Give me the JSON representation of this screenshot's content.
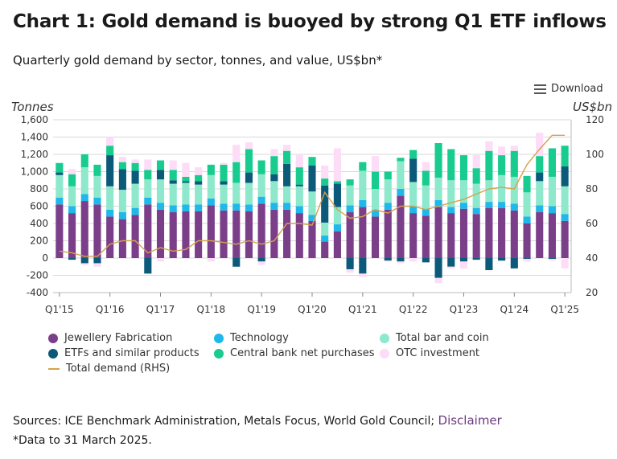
{
  "header": {
    "title": "Chart 1: Gold demand is buoyed by strong Q1 ETF inflows",
    "subtitle": "Quarterly gold demand by sector, tonnes, and value, US$bn*",
    "download_label": "Download"
  },
  "footer": {
    "sources_text": "Sources: ICE Benchmark Administration, Metals Focus, World Gold Council;",
    "disclaimer_label": "Disclaimer",
    "note": "*Data to 31 March 2025."
  },
  "chart_data": {
    "type": "bar",
    "stacked": true,
    "ylabel": "Tonnes",
    "y2label": "US$bn",
    "ylim": [
      -400,
      1600
    ],
    "y2lim": [
      20,
      120
    ],
    "yticks": [
      "1,600",
      "1,400",
      "1,200",
      "1,000",
      "800",
      "600",
      "400",
      "200",
      "0",
      "-200",
      "-400"
    ],
    "y2ticks": [
      "120",
      "100",
      "80",
      "60",
      "40",
      "20"
    ],
    "xtick_labels": [
      "Q1'15",
      "Q1'16",
      "Q1'17",
      "Q1'18",
      "Q1'19",
      "Q1'20",
      "Q1'21",
      "Q1'22",
      "Q1'23",
      "Q1'24",
      "Q1'25"
    ],
    "grid": true,
    "legend_position": "bottom",
    "categories": [
      "Q1'15",
      "Q2'15",
      "Q3'15",
      "Q4'15",
      "Q1'16",
      "Q2'16",
      "Q3'16",
      "Q4'16",
      "Q1'17",
      "Q2'17",
      "Q3'17",
      "Q4'17",
      "Q1'18",
      "Q2'18",
      "Q3'18",
      "Q4'18",
      "Q1'19",
      "Q2'19",
      "Q3'19",
      "Q4'19",
      "Q1'20",
      "Q2'20",
      "Q3'20",
      "Q4'20",
      "Q1'21",
      "Q2'21",
      "Q3'21",
      "Q4'21",
      "Q1'22",
      "Q2'22",
      "Q3'22",
      "Q4'22",
      "Q1'23",
      "Q2'23",
      "Q3'23",
      "Q4'23",
      "Q1'24",
      "Q2'24",
      "Q3'24",
      "Q4'24",
      "Q1'25"
    ],
    "series": [
      {
        "name": "Jewellery Fabrication",
        "color": "#7b3f8a",
        "kind": "bar",
        "values": [
          620,
          520,
          660,
          620,
          480,
          450,
          500,
          620,
          560,
          530,
          540,
          540,
          610,
          550,
          550,
          540,
          630,
          560,
          560,
          520,
          430,
          190,
          310,
          530,
          590,
          480,
          560,
          720,
          520,
          490,
          590,
          520,
          570,
          510,
          580,
          580,
          550,
          400,
          530,
          520,
          430
        ]
      },
      {
        "name": "Technology",
        "color": "#1fb8ea",
        "kind": "bar",
        "values": [
          80,
          80,
          80,
          80,
          80,
          80,
          80,
          80,
          80,
          80,
          80,
          80,
          80,
          80,
          80,
          80,
          80,
          80,
          80,
          80,
          70,
          70,
          80,
          80,
          80,
          80,
          80,
          80,
          80,
          80,
          80,
          70,
          70,
          70,
          70,
          70,
          80,
          80,
          80,
          80,
          80
        ]
      },
      {
        "name": "Total bar and coin",
        "color": "#8ee8cc",
        "kind": "bar",
        "values": [
          260,
          230,
          310,
          250,
          270,
          260,
          280,
          210,
          270,
          250,
          250,
          230,
          270,
          220,
          240,
          250,
          260,
          250,
          190,
          230,
          270,
          150,
          200,
          230,
          340,
          240,
          270,
          320,
          280,
          270,
          260,
          310,
          260,
          280,
          250,
          310,
          310,
          280,
          280,
          340,
          320
        ]
      },
      {
        "name": "ETFs and similar products",
        "color": "#0b5a7a",
        "kind": "bar",
        "values": [
          30,
          -20,
          -60,
          -60,
          360,
          240,
          150,
          -180,
          110,
          40,
          20,
          40,
          0,
          40,
          -100,
          120,
          -40,
          80,
          260,
          20,
          300,
          430,
          270,
          -130,
          -180,
          0,
          -30,
          -40,
          270,
          -50,
          -230,
          -100,
          -40,
          -20,
          -140,
          -30,
          -120,
          -10,
          100,
          -10,
          230
        ]
      },
      {
        "name": "Central bank net purchases",
        "color": "#17cc8e",
        "kind": "bar",
        "values": [
          110,
          140,
          150,
          130,
          110,
          80,
          90,
          110,
          110,
          120,
          50,
          70,
          120,
          190,
          240,
          270,
          160,
          210,
          150,
          200,
          100,
          80,
          30,
          70,
          100,
          200,
          90,
          40,
          100,
          170,
          400,
          360,
          290,
          180,
          340,
          230,
          300,
          190,
          190,
          330,
          240
        ]
      },
      {
        "name": "OTC investment",
        "color": "#fcdcf6",
        "kind": "bar",
        "values": [
          0,
          60,
          -20,
          -40,
          100,
          60,
          40,
          120,
          -40,
          110,
          160,
          90,
          -40,
          20,
          200,
          80,
          -40,
          80,
          70,
          150,
          -10,
          150,
          380,
          -40,
          -40,
          180,
          -10,
          -20,
          -40,
          100,
          -60,
          -20,
          -80,
          150,
          110,
          100,
          60,
          -30,
          270,
          -20,
          -120
        ]
      },
      {
        "name": "Total demand (RHS)",
        "color": "#d4a24c",
        "kind": "line",
        "values": [
          44,
          43,
          41,
          41,
          48,
          50,
          50,
          43,
          46,
          44,
          45,
          50,
          50,
          49,
          48,
          50,
          48,
          50,
          60,
          60,
          59,
          78,
          68,
          63,
          64,
          68,
          66,
          70,
          70,
          68,
          70,
          72,
          74,
          77,
          80,
          81,
          80,
          94,
          103,
          111,
          111
        ]
      }
    ]
  }
}
